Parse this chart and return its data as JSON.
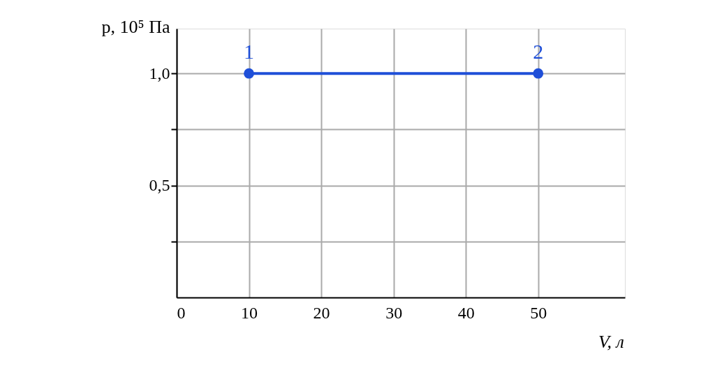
{
  "chart_data": {
    "type": "line",
    "xlabel": "V, л",
    "ylabel": "p, 10⁵ Па",
    "x": [
      10,
      50
    ],
    "series": [
      {
        "color": "#1f4fd8",
        "values": [
          1.0,
          1.0
        ]
      }
    ],
    "marker": "circle",
    "line_style": "solid",
    "xlim": [
      0,
      62
    ],
    "ylim": [
      0,
      1.2
    ],
    "xticks": [
      0,
      10,
      20,
      30,
      40,
      50
    ],
    "yticks": [
      {
        "value": 0.25,
        "label": null
      },
      {
        "value": 0.5,
        "label": "0,5"
      },
      {
        "value": 0.75,
        "label": null
      },
      {
        "value": 1.0,
        "label": "1,0"
      }
    ],
    "grid": true,
    "annotations": [
      {
        "text": "1",
        "x": 10,
        "y": 1.0
      },
      {
        "text": "2",
        "x": 50,
        "y": 1.0
      }
    ]
  }
}
